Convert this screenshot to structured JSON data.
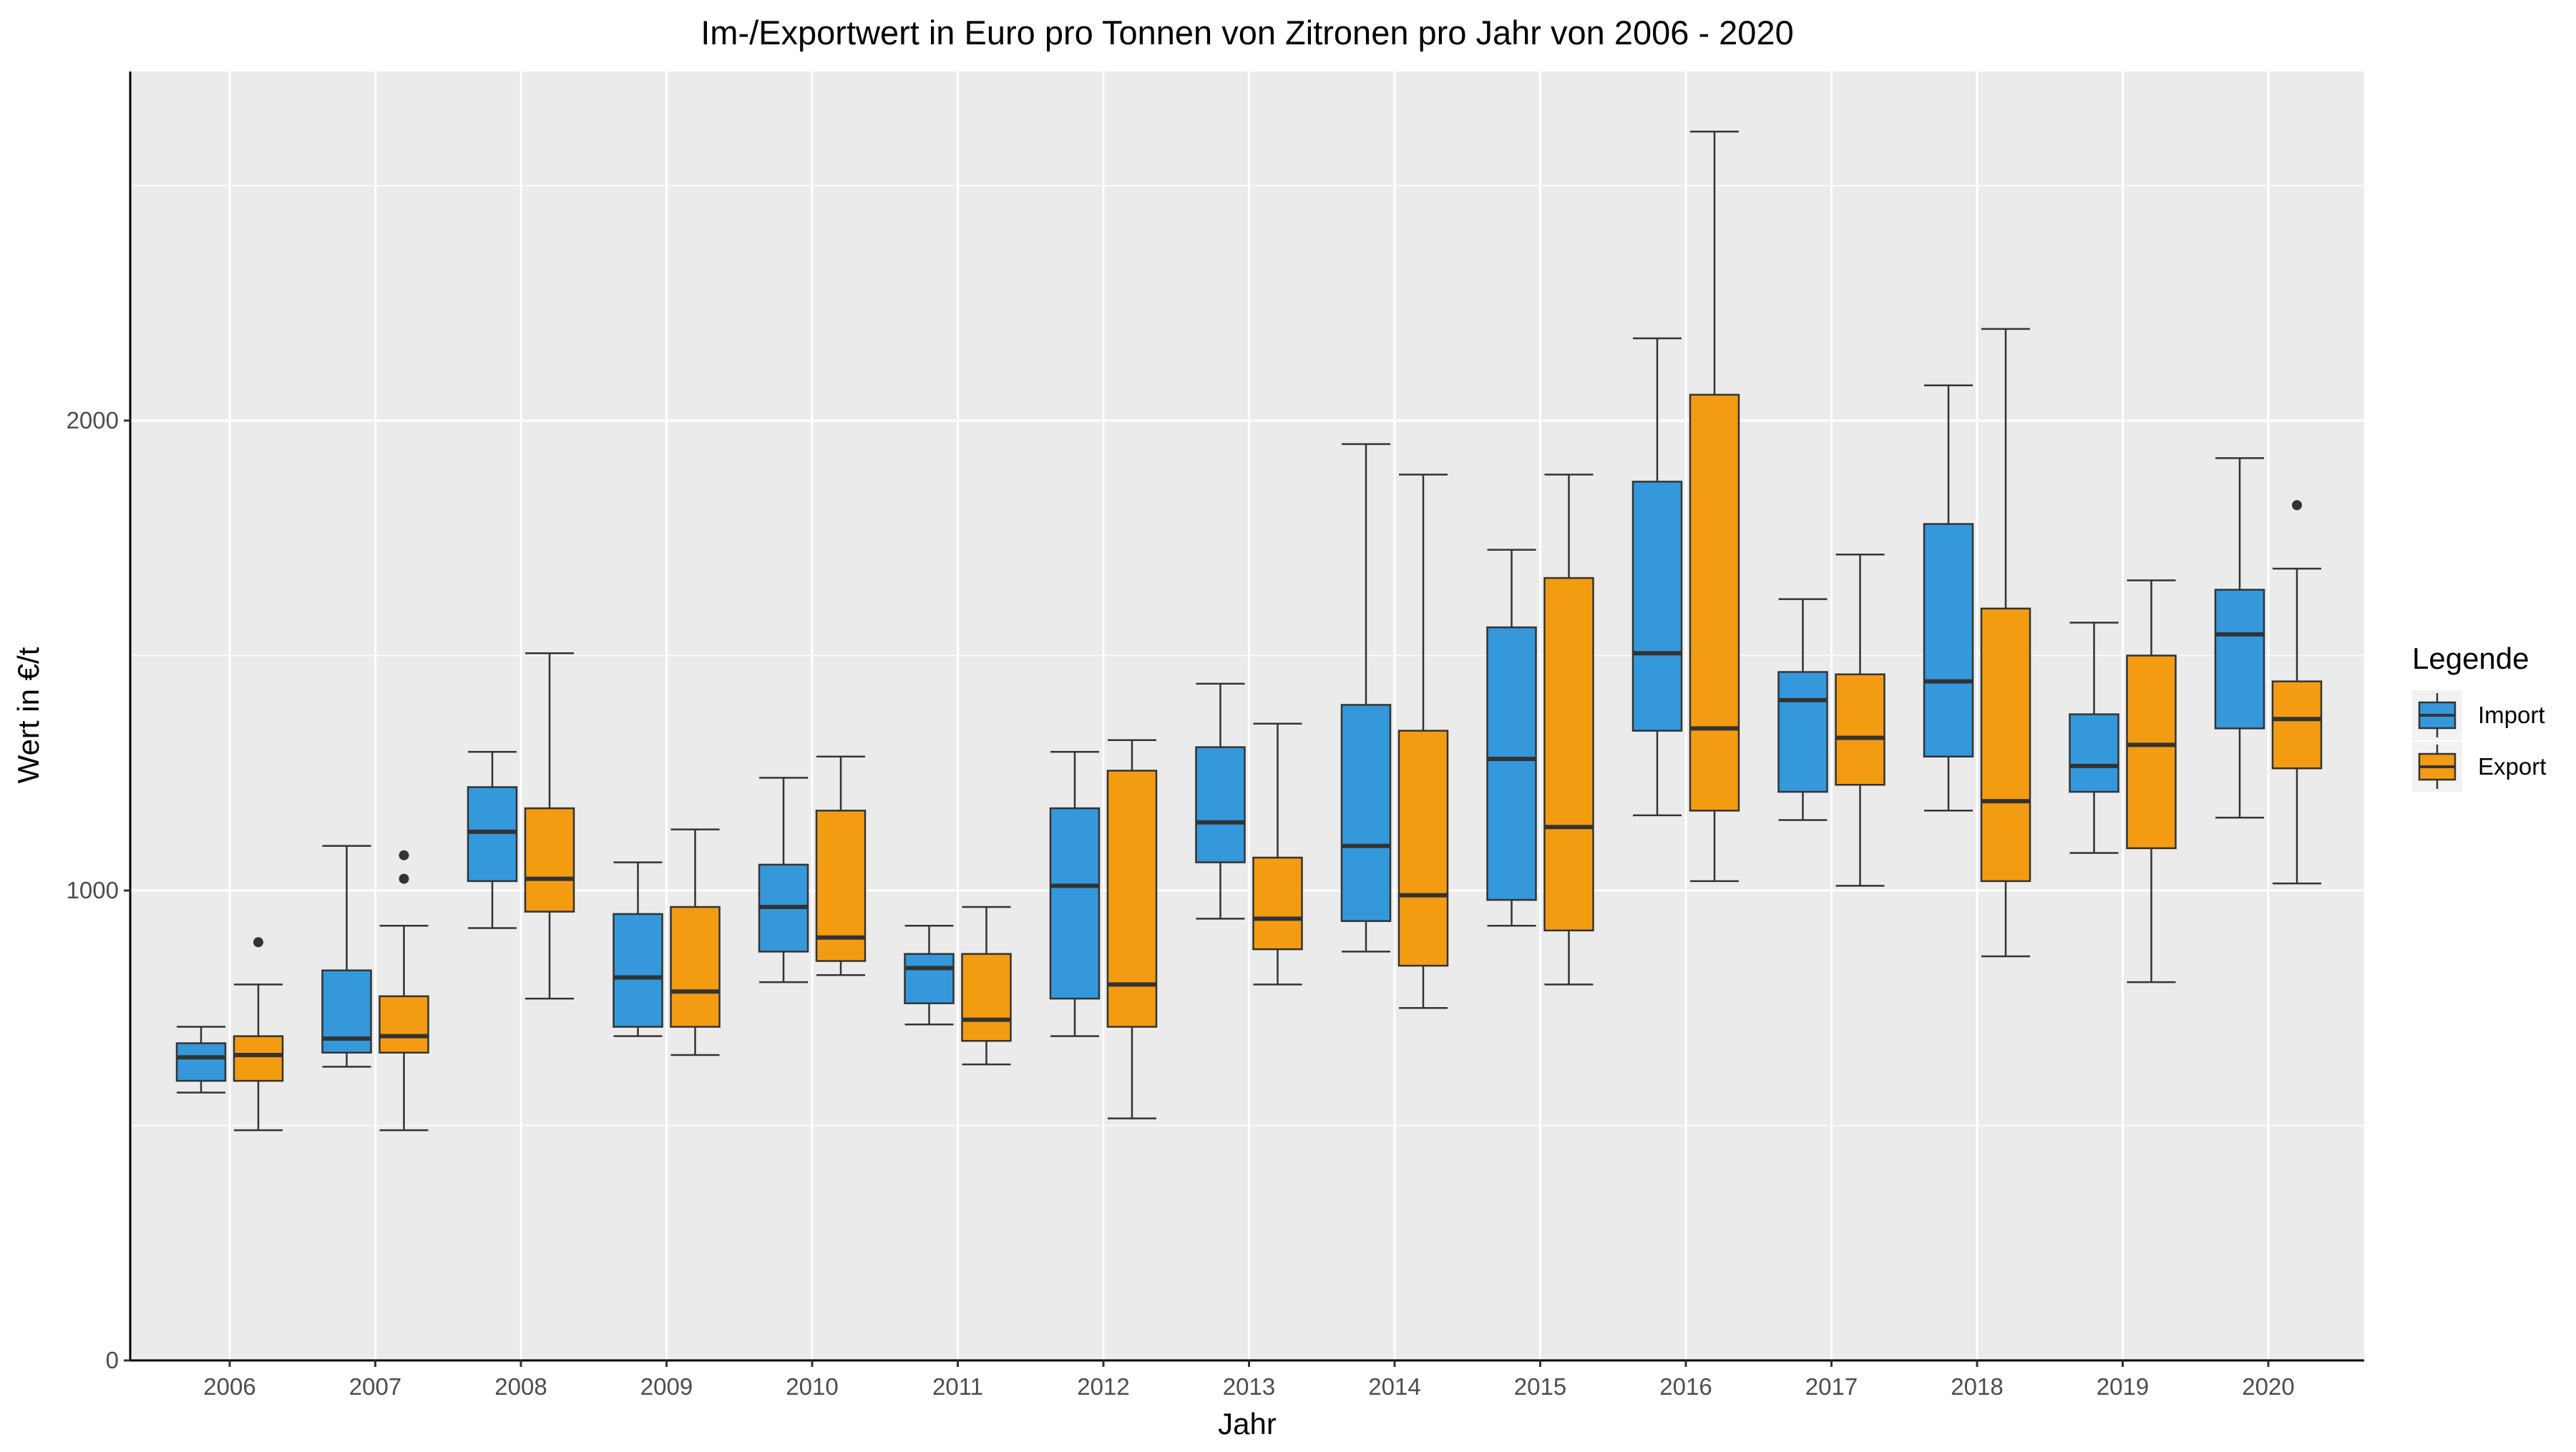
{
  "chart_data": {
    "type": "boxplot",
    "title": "Im-/Exportwert in Euro pro Tonnen von Zitronen pro Jahr von 2006 - 2020",
    "xlabel": "Jahr",
    "ylabel": "Wert in €/t",
    "ylim": [
      0,
      2750
    ],
    "yticks": [
      0,
      1000,
      2000
    ],
    "grid": true,
    "legend": {
      "title": "Legende",
      "position": "right"
    },
    "categories": [
      "2006",
      "2007",
      "2008",
      "2009",
      "2010",
      "2011",
      "2012",
      "2013",
      "2014",
      "2015",
      "2016",
      "2017",
      "2018",
      "2019",
      "2020"
    ],
    "series": [
      {
        "name": "Import",
        "color": "#3498DB",
        "boxes": [
          {
            "min": 570,
            "q1": 595,
            "median": 645,
            "q3": 675,
            "max": 710,
            "outliers": []
          },
          {
            "min": 625,
            "q1": 655,
            "median": 685,
            "q3": 830,
            "max": 1095,
            "outliers": []
          },
          {
            "min": 920,
            "q1": 1020,
            "median": 1125,
            "q3": 1220,
            "max": 1295,
            "outliers": []
          },
          {
            "min": 690,
            "q1": 710,
            "median": 815,
            "q3": 950,
            "max": 1060,
            "outliers": []
          },
          {
            "min": 805,
            "q1": 870,
            "median": 965,
            "q3": 1055,
            "max": 1240,
            "outliers": []
          },
          {
            "min": 715,
            "q1": 760,
            "median": 835,
            "q3": 865,
            "max": 925,
            "outliers": []
          },
          {
            "min": 690,
            "q1": 770,
            "median": 1010,
            "q3": 1175,
            "max": 1295,
            "outliers": []
          },
          {
            "min": 940,
            "q1": 1060,
            "median": 1145,
            "q3": 1305,
            "max": 1440,
            "outliers": []
          },
          {
            "min": 870,
            "q1": 935,
            "median": 1095,
            "q3": 1395,
            "max": 1950,
            "outliers": []
          },
          {
            "min": 925,
            "q1": 980,
            "median": 1280,
            "q3": 1560,
            "max": 1725,
            "outliers": []
          },
          {
            "min": 1160,
            "q1": 1340,
            "median": 1505,
            "q3": 1870,
            "max": 2175,
            "outliers": []
          },
          {
            "min": 1150,
            "q1": 1210,
            "median": 1405,
            "q3": 1465,
            "max": 1620,
            "outliers": []
          },
          {
            "min": 1170,
            "q1": 1285,
            "median": 1445,
            "q3": 1780,
            "max": 2075,
            "outliers": []
          },
          {
            "min": 1080,
            "q1": 1210,
            "median": 1265,
            "q3": 1375,
            "max": 1570,
            "outliers": []
          },
          {
            "min": 1155,
            "q1": 1345,
            "median": 1545,
            "q3": 1640,
            "max": 1920,
            "outliers": []
          }
        ]
      },
      {
        "name": "Export",
        "color": "#F39C12",
        "boxes": [
          {
            "min": 490,
            "q1": 595,
            "median": 650,
            "q3": 690,
            "max": 800,
            "outliers": [
              890
            ]
          },
          {
            "min": 490,
            "q1": 655,
            "median": 690,
            "q3": 775,
            "max": 925,
            "outliers": [
              1025,
              1075
            ]
          },
          {
            "min": 770,
            "q1": 955,
            "median": 1025,
            "q3": 1175,
            "max": 1505,
            "outliers": []
          },
          {
            "min": 650,
            "q1": 710,
            "median": 785,
            "q3": 965,
            "max": 1130,
            "outliers": []
          },
          {
            "min": 820,
            "q1": 850,
            "median": 900,
            "q3": 1170,
            "max": 1285,
            "outliers": []
          },
          {
            "min": 630,
            "q1": 680,
            "median": 725,
            "q3": 865,
            "max": 965,
            "outliers": []
          },
          {
            "min": 515,
            "q1": 710,
            "median": 800,
            "q3": 1255,
            "max": 1320,
            "outliers": []
          },
          {
            "min": 800,
            "q1": 875,
            "median": 940,
            "q3": 1070,
            "max": 1355,
            "outliers": []
          },
          {
            "min": 750,
            "q1": 840,
            "median": 990,
            "q3": 1340,
            "max": 1885,
            "outliers": []
          },
          {
            "min": 800,
            "q1": 915,
            "median": 1135,
            "q3": 1665,
            "max": 1885,
            "outliers": []
          },
          {
            "min": 1020,
            "q1": 1170,
            "median": 1345,
            "q3": 2055,
            "max": 2615,
            "outliers": []
          },
          {
            "min": 1010,
            "q1": 1225,
            "median": 1325,
            "q3": 1460,
            "max": 1715,
            "outliers": []
          },
          {
            "min": 860,
            "q1": 1020,
            "median": 1190,
            "q3": 1600,
            "max": 2195,
            "outliers": []
          },
          {
            "min": 805,
            "q1": 1090,
            "median": 1310,
            "q3": 1500,
            "max": 1660,
            "outliers": []
          },
          {
            "min": 1015,
            "q1": 1260,
            "median": 1365,
            "q3": 1445,
            "max": 1685,
            "outliers": [
              1820
            ]
          }
        ]
      }
    ]
  }
}
